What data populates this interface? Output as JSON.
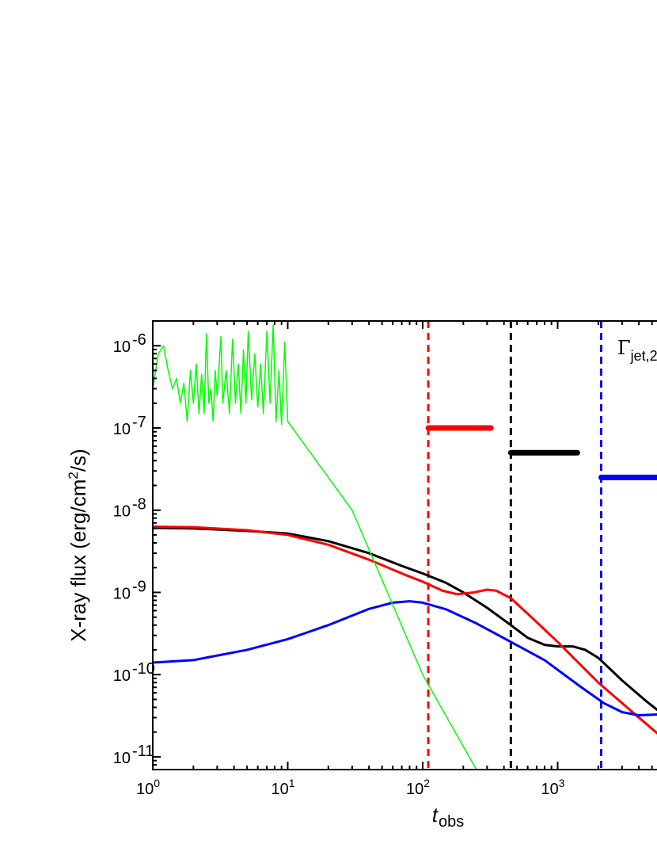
{
  "chart_data": {
    "type": "line",
    "title": "",
    "xlabel": "t",
    "xlabel_sub": "obs",
    "ylabel_prefix": "X-ray flux (erg/cm",
    "ylabel_sup": "2",
    "ylabel_suffix": "/s)",
    "xscale": "log",
    "yscale": "log",
    "xlim": [
      1,
      6000
    ],
    "ylim": [
      7e-12,
      2e-06
    ],
    "x_tick_labels": [
      {
        "base": "10",
        "exp": "0",
        "value": 1
      },
      {
        "base": "10",
        "exp": "1",
        "value": 10
      },
      {
        "base": "10",
        "exp": "2",
        "value": 100
      },
      {
        "base": "10",
        "exp": "3",
        "value": 1000
      }
    ],
    "y_tick_labels": [
      {
        "base": "10",
        "exp": "-6",
        "value": 1e-06
      },
      {
        "base": "10",
        "exp": "-7",
        "value": 1e-07
      },
      {
        "base": "10",
        "exp": "-8",
        "value": 1e-08
      },
      {
        "base": "10",
        "exp": "-9",
        "value": 1e-09
      },
      {
        "base": "10",
        "exp": "-10",
        "value": 1e-10
      },
      {
        "base": "10",
        "exp": "-11",
        "value": 1e-11
      }
    ],
    "annotation": {
      "symbol": "Γ",
      "subscript": "jet,2",
      "x": 2500,
      "y": 1e-06
    },
    "grid": false,
    "legend": "none",
    "series": [
      {
        "color": "#000000",
        "points": [
          [
            1,
            6.1e-09
          ],
          [
            2,
            6e-09
          ],
          [
            5,
            5.6e-09
          ],
          [
            10,
            5.2e-09
          ],
          [
            20,
            4.2e-09
          ],
          [
            40,
            3e-09
          ],
          [
            70,
            2.1e-09
          ],
          [
            100,
            1.7e-09
          ],
          [
            150,
            1.3e-09
          ],
          [
            200,
            1e-09
          ],
          [
            300,
            6.5e-10
          ],
          [
            450,
            4e-10
          ],
          [
            600,
            2.8e-10
          ],
          [
            800,
            2.3e-10
          ],
          [
            1000,
            2.2e-10
          ],
          [
            1300,
            2.2e-10
          ],
          [
            1600,
            2e-10
          ],
          [
            2000,
            1.6e-10
          ],
          [
            3000,
            8.5e-11
          ],
          [
            4500,
            4.8e-11
          ],
          [
            6000,
            3.3e-11
          ]
        ]
      },
      {
        "color": "#ff0000",
        "points": [
          [
            1,
            6.3e-09
          ],
          [
            2,
            6.2e-09
          ],
          [
            5,
            5.7e-09
          ],
          [
            10,
            5e-09
          ],
          [
            20,
            3.8e-09
          ],
          [
            40,
            2.5e-09
          ],
          [
            70,
            1.7e-09
          ],
          [
            100,
            1.35e-09
          ],
          [
            140,
            1.05e-09
          ],
          [
            180,
            9.5e-10
          ],
          [
            240,
            1e-09
          ],
          [
            300,
            1.08e-09
          ],
          [
            350,
            1.05e-09
          ],
          [
            450,
            8.5e-10
          ],
          [
            600,
            5.5e-10
          ],
          [
            1000,
            2.5e-10
          ],
          [
            2000,
            8e-11
          ],
          [
            4000,
            3e-11
          ],
          [
            6000,
            1.7e-11
          ]
        ]
      },
      {
        "color": "#0000ff",
        "points": [
          [
            1,
            1.4e-10
          ],
          [
            2,
            1.5e-10
          ],
          [
            5,
            2e-10
          ],
          [
            10,
            2.7e-10
          ],
          [
            20,
            4e-10
          ],
          [
            40,
            6.3e-10
          ],
          [
            60,
            7.5e-10
          ],
          [
            80,
            7.8e-10
          ],
          [
            100,
            7.5e-10
          ],
          [
            150,
            6.2e-10
          ],
          [
            250,
            4.2e-10
          ],
          [
            450,
            2.5e-10
          ],
          [
            800,
            1.5e-10
          ],
          [
            1500,
            7e-11
          ],
          [
            2200,
            4.5e-11
          ],
          [
            3000,
            3.5e-11
          ],
          [
            4000,
            3.2e-11
          ],
          [
            6000,
            3.3e-11
          ]
        ]
      },
      {
        "color": "#00ff00",
        "points": [
          [
            1,
            3e-07
          ],
          [
            1.1,
            8e-07
          ],
          [
            1.2,
            1e-06
          ],
          [
            1.3,
            5e-07
          ],
          [
            1.4,
            3e-07
          ],
          [
            1.5,
            4e-07
          ],
          [
            1.6,
            2e-07
          ],
          [
            1.7,
            3.5e-07
          ],
          [
            1.8,
            1.2e-07
          ],
          [
            1.9,
            5e-07
          ],
          [
            2,
            2e-07
          ],
          [
            2.1,
            6e-07
          ],
          [
            2.2,
            1.5e-07
          ],
          [
            2.3,
            4.5e-07
          ],
          [
            2.4,
            1.5e-07
          ],
          [
            2.5,
            1.4e-06
          ],
          [
            2.6,
            2e-07
          ],
          [
            2.7,
            3e-07
          ],
          [
            2.8,
            1.2e-07
          ],
          [
            2.9,
            5e-07
          ],
          [
            3,
            2.5e-07
          ],
          [
            3.2,
            1.3e-06
          ],
          [
            3.3,
            2e-07
          ],
          [
            3.5,
            5e-07
          ],
          [
            3.7,
            1.5e-07
          ],
          [
            3.9,
            1.2e-06
          ],
          [
            4.1,
            2e-07
          ],
          [
            4.3,
            6e-07
          ],
          [
            4.5,
            1.5e-07
          ],
          [
            4.7,
            9e-07
          ],
          [
            4.9,
            2e-07
          ],
          [
            5.1,
            1.5e-06
          ],
          [
            5.4,
            2.2e-07
          ],
          [
            5.7,
            8e-07
          ],
          [
            6,
            1.8e-07
          ],
          [
            6.3,
            6e-07
          ],
          [
            6.6,
            1.5e-07
          ],
          [
            7,
            1.5e-06
          ],
          [
            7.4,
            2e-07
          ],
          [
            7.8,
            1.8e-06
          ],
          [
            8.2,
            1.2e-07
          ],
          [
            8.6,
            5e-07
          ],
          [
            9,
            1.1e-07
          ],
          [
            9.5,
            1.1e-06
          ],
          [
            10,
            1.2e-07
          ],
          [
            30,
            1e-08
          ],
          [
            100,
            1e-10
          ],
          [
            250,
            7e-12
          ]
        ]
      }
    ],
    "vertical_lines": [
      {
        "x": 110,
        "color": "#ff0000",
        "style": "dashed"
      },
      {
        "x": 450,
        "color": "#000000",
        "style": "dashed"
      },
      {
        "x": 2100,
        "color": "#0000ff",
        "style": "dashed"
      }
    ],
    "horizontal_segments": [
      {
        "x_start": 110,
        "x_end": 320,
        "y": 1e-07,
        "color": "#ff0000"
      },
      {
        "x_start": 450,
        "x_end": 1400,
        "y": 5e-08,
        "color": "#000000"
      },
      {
        "x_start": 2100,
        "x_end": 6000,
        "y": 2.5e-08,
        "color": "#0000ff"
      }
    ]
  }
}
